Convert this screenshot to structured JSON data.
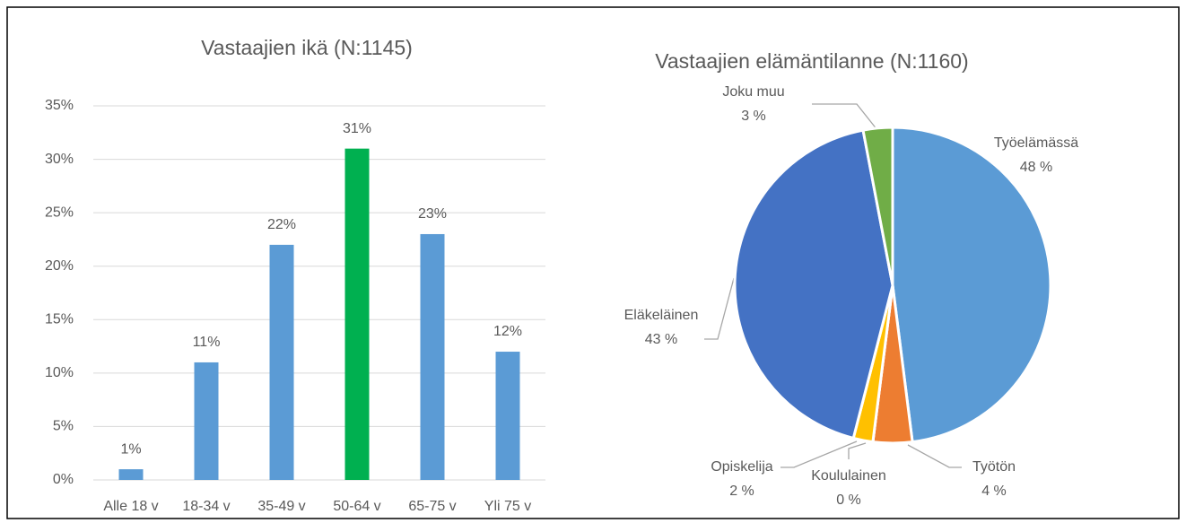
{
  "chart_data": [
    {
      "type": "bar",
      "title": "Vastaajien ikä (N:1145)",
      "categories": [
        "Alle 18 v",
        "18-34 v",
        "35-49 v",
        "50-64 v",
        "65-75 v",
        "Yli 75 v"
      ],
      "values": [
        1,
        11,
        22,
        31,
        23,
        12
      ],
      "value_labels": [
        "1%",
        "11%",
        "22%",
        "31%",
        "23%",
        "12%"
      ],
      "colors": [
        "#5b9bd5",
        "#5b9bd5",
        "#5b9bd5",
        "#00b050",
        "#5b9bd5",
        "#5b9bd5"
      ],
      "ylim": [
        0,
        35
      ],
      "yticks": [
        {
          "value": 0,
          "label": "0%"
        },
        {
          "value": 5,
          "label": "5%"
        },
        {
          "value": 10,
          "label": "10%"
        },
        {
          "value": 15,
          "label": "15%"
        },
        {
          "value": 20,
          "label": "20%"
        },
        {
          "value": 25,
          "label": "25%"
        },
        {
          "value": 30,
          "label": "30%"
        },
        {
          "value": 35,
          "label": "35%"
        }
      ],
      "grid": true
    },
    {
      "type": "pie",
      "title": "Vastaajien elämäntilanne (N:1160)",
      "categories": [
        "Työelämässä",
        "Työtön",
        "Koululainen",
        "Opiskelija",
        "Eläkeläinen",
        "Joku muu"
      ],
      "values": [
        48,
        4,
        0,
        2,
        43,
        3
      ],
      "value_labels": [
        "48 %",
        "4 %",
        "0 %",
        "2 %",
        "43 %",
        "3 %"
      ],
      "colors": [
        "#5b9bd5",
        "#ed7d31",
        "#a5a5a5",
        "#ffc000",
        "#4472c4",
        "#70ad47"
      ]
    }
  ]
}
